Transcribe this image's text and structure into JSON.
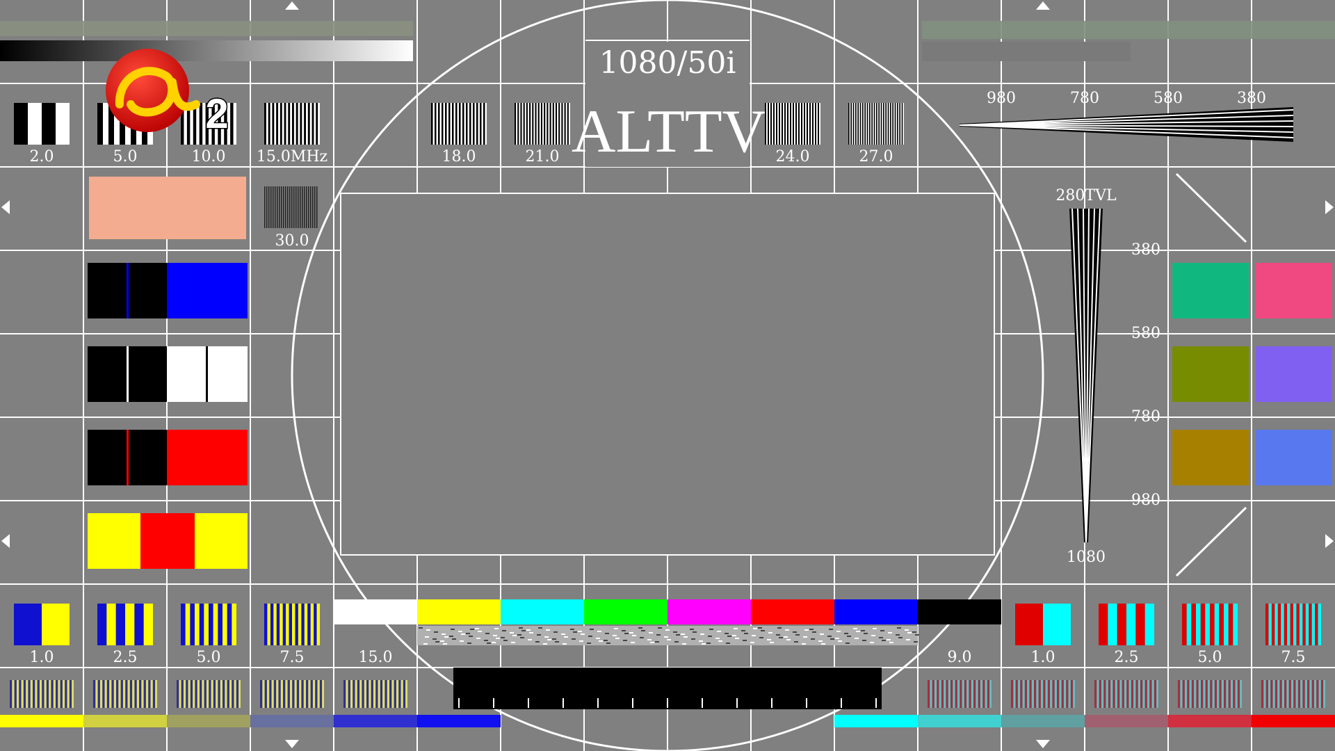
{
  "header": {
    "format": "1080/50i",
    "station": "ALTTV",
    "channel_number": "2"
  },
  "logo": {
    "icon": "alttv-red-circle-logo-icon",
    "lettering": "a"
  },
  "top_frequency_labels": [
    "2.0",
    "5.0",
    "10.0",
    "15.0MHz",
    "18.0",
    "21.0",
    "24.0",
    "27.0"
  ],
  "side_frequency_label": "30.0",
  "horizontal_wedge_labels": [
    "980",
    "780",
    "580",
    "380"
  ],
  "vertical_wedge": {
    "top_label": "280TVL",
    "bottom_label": "1080",
    "scale_labels": [
      "380",
      "580",
      "780",
      "980"
    ]
  },
  "bottom_left_labels": [
    "1.0",
    "2.5",
    "5.0",
    "7.5",
    "15.0"
  ],
  "bottom_right_labels": [
    "9.0",
    "1.0",
    "2.5",
    "5.0",
    "7.5"
  ],
  "color_bars": [
    "#ffffff",
    "#ffff00",
    "#00ffff",
    "#00ff00",
    "#ff00ff",
    "#ff0000",
    "#0000ff",
    "#000000"
  ],
  "right_swatches": [
    "#10b880",
    "#f04880",
    "#788c00",
    "#8060f0",
    "#a88000",
    "#5878f0"
  ],
  "skin_tone": "#f4ac90",
  "icons": {
    "edge_markers": [
      "arrow-up-icon",
      "arrow-down-icon",
      "arrow-left-icon",
      "arrow-right-icon"
    ]
  }
}
